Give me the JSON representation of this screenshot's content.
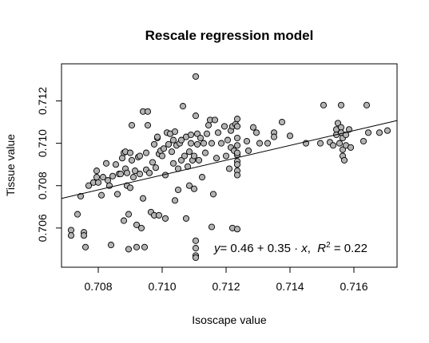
{
  "chart_data": {
    "type": "scatter",
    "title": "Rescale regression model",
    "xlabel": "Isoscape value",
    "ylabel": "Tissue value",
    "xlim": [
      0.70685,
      0.71735
    ],
    "ylim": [
      0.70415,
      0.71375
    ],
    "x_ticks": [
      0.708,
      0.71,
      0.712,
      0.714,
      0.716
    ],
    "x_tick_labels": [
      "0.708",
      "0.710",
      "0.712",
      "0.714",
      "0.716"
    ],
    "y_ticks": [
      0.706,
      0.708,
      0.71,
      0.712
    ],
    "y_tick_labels": [
      "0.706",
      "0.708",
      "0.710",
      "0.712"
    ],
    "grid": false,
    "marker_fill": "#b3b3b3",
    "marker_edge": "#000000",
    "regression": {
      "intercept": 0.46,
      "slope": 0.35,
      "r2": 0.22
    },
    "annotation": {
      "lhs": "y",
      "eq": "= 0.46 + 0.35 · ",
      "x": "x",
      "sep": ",  ",
      "r2_label": "R",
      "r2_exp": "2",
      "r2_val": " = 0.22"
    },
    "points": [
      [
        0.70715,
        0.7059
      ],
      [
        0.70715,
        0.70565
      ],
      [
        0.70735,
        0.70665
      ],
      [
        0.70745,
        0.7075
      ],
      [
        0.70755,
        0.7058
      ],
      [
        0.70755,
        0.70565
      ],
      [
        0.7076,
        0.7051
      ],
      [
        0.7077,
        0.708
      ],
      [
        0.70785,
        0.70815
      ],
      [
        0.70795,
        0.7087
      ],
      [
        0.70795,
        0.7084
      ],
      [
        0.708,
        0.70815
      ],
      [
        0.7081,
        0.70755
      ],
      [
        0.70815,
        0.7084
      ],
      [
        0.70825,
        0.70905
      ],
      [
        0.7083,
        0.70825
      ],
      [
        0.70835,
        0.708
      ],
      [
        0.7084,
        0.7052
      ],
      [
        0.70845,
        0.70845
      ],
      [
        0.70855,
        0.709
      ],
      [
        0.7086,
        0.7076
      ],
      [
        0.70865,
        0.70855
      ],
      [
        0.7087,
        0.70855
      ],
      [
        0.70875,
        0.7093
      ],
      [
        0.7088,
        0.70635
      ],
      [
        0.7088,
        0.70955
      ],
      [
        0.70885,
        0.7096
      ],
      [
        0.70885,
        0.7088
      ],
      [
        0.7089,
        0.7086
      ],
      [
        0.7089,
        0.708
      ],
      [
        0.70895,
        0.70665
      ],
      [
        0.70895,
        0.705
      ],
      [
        0.709,
        0.7079
      ],
      [
        0.709,
        0.70955
      ],
      [
        0.70905,
        0.71085
      ],
      [
        0.70905,
        0.7092
      ],
      [
        0.7091,
        0.7084
      ],
      [
        0.70915,
        0.7087
      ],
      [
        0.7092,
        0.70615
      ],
      [
        0.7092,
        0.7051
      ],
      [
        0.70925,
        0.70935
      ],
      [
        0.7093,
        0.7094
      ],
      [
        0.7093,
        0.70855
      ],
      [
        0.70935,
        0.706
      ],
      [
        0.7094,
        0.7074
      ],
      [
        0.7094,
        0.7115
      ],
      [
        0.70945,
        0.7051
      ],
      [
        0.7095,
        0.70875
      ],
      [
        0.7095,
        0.70955
      ],
      [
        0.70955,
        0.7115
      ],
      [
        0.70955,
        0.71085
      ],
      [
        0.7096,
        0.7086
      ],
      [
        0.70965,
        0.70675
      ],
      [
        0.7097,
        0.7091
      ],
      [
        0.70975,
        0.70995
      ],
      [
        0.70975,
        0.7066
      ],
      [
        0.7098,
        0.70885
      ],
      [
        0.70985,
        0.71025
      ],
      [
        0.70985,
        0.7103
      ],
      [
        0.7099,
        0.7095
      ],
      [
        0.7099,
        0.7066
      ],
      [
        0.70995,
        0.70965
      ],
      [
        0.71,
        0.7094
      ],
      [
        0.71005,
        0.70975
      ],
      [
        0.7101,
        0.70645
      ],
      [
        0.7101,
        0.7085
      ],
      [
        0.71015,
        0.7105
      ],
      [
        0.7102,
        0.70995
      ],
      [
        0.71025,
        0.71045
      ],
      [
        0.7103,
        0.7096
      ],
      [
        0.71035,
        0.70905
      ],
      [
        0.71035,
        0.71015
      ],
      [
        0.7104,
        0.71055
      ],
      [
        0.7104,
        0.7073
      ],
      [
        0.71045,
        0.7099
      ],
      [
        0.7105,
        0.7088
      ],
      [
        0.7105,
        0.7078
      ],
      [
        0.71055,
        0.71
      ],
      [
        0.7106,
        0.71015
      ],
      [
        0.7106,
        0.7092
      ],
      [
        0.71065,
        0.71175
      ],
      [
        0.7107,
        0.7094
      ],
      [
        0.71075,
        0.7103
      ],
      [
        0.71075,
        0.70645
      ],
      [
        0.7108,
        0.7089
      ],
      [
        0.71085,
        0.7096
      ],
      [
        0.71085,
        0.708
      ],
      [
        0.7109,
        0.7104
      ],
      [
        0.7109,
        0.71
      ],
      [
        0.71095,
        0.7092
      ],
      [
        0.711,
        0.7094
      ],
      [
        0.711,
        0.70785
      ],
      [
        0.71105,
        0.70505
      ],
      [
        0.71105,
        0.7054
      ],
      [
        0.71105,
        0.7047
      ],
      [
        0.71105,
        0.7046
      ],
      [
        0.71105,
        0.7113
      ],
      [
        0.71105,
        0.71315
      ],
      [
        0.7111,
        0.71045
      ],
      [
        0.7111,
        0.70995
      ],
      [
        0.71115,
        0.7092
      ],
      [
        0.7112,
        0.71025
      ],
      [
        0.71125,
        0.7084
      ],
      [
        0.7113,
        0.71
      ],
      [
        0.71135,
        0.70955
      ],
      [
        0.7114,
        0.71045
      ],
      [
        0.71145,
        0.71085
      ],
      [
        0.7115,
        0.7111
      ],
      [
        0.71155,
        0.71
      ],
      [
        0.71155,
        0.70605
      ],
      [
        0.7116,
        0.7076
      ],
      [
        0.71165,
        0.7111
      ],
      [
        0.7117,
        0.7093
      ],
      [
        0.71175,
        0.7105
      ],
      [
        0.71185,
        0.71
      ],
      [
        0.71195,
        0.7108
      ],
      [
        0.712,
        0.7094
      ],
      [
        0.71205,
        0.71015
      ],
      [
        0.7121,
        0.7088
      ],
      [
        0.71215,
        0.7098
      ],
      [
        0.71215,
        0.7106
      ],
      [
        0.7122,
        0.7108
      ],
      [
        0.7122,
        0.706
      ],
      [
        0.71225,
        0.70965
      ],
      [
        0.7123,
        0.7109
      ],
      [
        0.71235,
        0.70595
      ],
      [
        0.71235,
        0.70915
      ],
      [
        0.71235,
        0.7087
      ],
      [
        0.71235,
        0.7085
      ],
      [
        0.71235,
        0.70945
      ],
      [
        0.71235,
        0.71025
      ],
      [
        0.71235,
        0.7108
      ],
      [
        0.71235,
        0.71115
      ],
      [
        0.71235,
        0.7099
      ],
      [
        0.71235,
        0.70955
      ],
      [
        0.71235,
        0.709
      ],
      [
        0.71265,
        0.7101
      ],
      [
        0.7127,
        0.70965
      ],
      [
        0.71285,
        0.71075
      ],
      [
        0.71295,
        0.7105
      ],
      [
        0.71305,
        0.71
      ],
      [
        0.7133,
        0.71
      ],
      [
        0.7135,
        0.7105
      ],
      [
        0.7135,
        0.7103
      ],
      [
        0.71375,
        0.711
      ],
      [
        0.714,
        0.71035
      ],
      [
        0.7145,
        0.71
      ],
      [
        0.71495,
        0.71
      ],
      [
        0.71505,
        0.7118
      ],
      [
        0.71525,
        0.71005
      ],
      [
        0.71535,
        0.7099
      ],
      [
        0.71545,
        0.71065
      ],
      [
        0.71545,
        0.7104
      ],
      [
        0.7155,
        0.71095
      ],
      [
        0.71555,
        0.71
      ],
      [
        0.7156,
        0.7118
      ],
      [
        0.7156,
        0.71075
      ],
      [
        0.7156,
        0.7105
      ],
      [
        0.71565,
        0.71025
      ],
      [
        0.71565,
        0.7097
      ],
      [
        0.71565,
        0.7094
      ],
      [
        0.7157,
        0.7092
      ],
      [
        0.71575,
        0.7099
      ],
      [
        0.71575,
        0.7104
      ],
      [
        0.71585,
        0.71065
      ],
      [
        0.7159,
        0.7098
      ],
      [
        0.7163,
        0.7101
      ],
      [
        0.7164,
        0.7118
      ],
      [
        0.71645,
        0.7105
      ],
      [
        0.7168,
        0.7105
      ],
      [
        0.71705,
        0.7106
      ]
    ]
  }
}
